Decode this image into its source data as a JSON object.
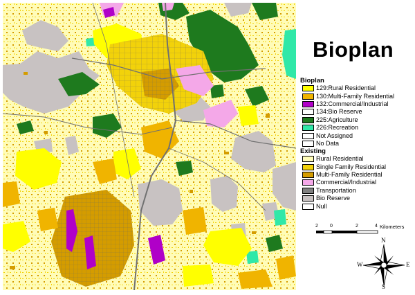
{
  "title": "Bioplan",
  "legend": {
    "bioplan_heading": "Bioplan",
    "bioplan_items": [
      {
        "label": "129:Rural Residential",
        "color": "#ffff00"
      },
      {
        "label": "130:Multi-Family Residential",
        "color": "#f0b400"
      },
      {
        "label": "132:Commercial/Industrial",
        "color": "#b000c8"
      },
      {
        "label": "134:Bio Reserve",
        "color": "#ffffff"
      },
      {
        "label": "225:Agriculture",
        "color": "#1e7a1e"
      },
      {
        "label": "226:Recreation",
        "color": "#30e8a8"
      },
      {
        "label": "Not Assigned",
        "color": "#ffffff"
      },
      {
        "label": "No Data",
        "color": "#ffffff"
      }
    ],
    "existing_heading": "Existing",
    "existing_items": [
      {
        "label": "Rural Residential",
        "color": "#fffcb8"
      },
      {
        "label": "Single Family Residential",
        "color": "#f2d20a"
      },
      {
        "label": "Multi-Family Residential",
        "color": "#d49c00"
      },
      {
        "label": "Commercial/Industrial",
        "color": "#f4a8e8"
      },
      {
        "label": "Transportation",
        "color": "#808080"
      },
      {
        "label": "Bio Reserve",
        "color": "#c8c2c2"
      },
      {
        "label": "Null",
        "color": "#ffffff"
      }
    ]
  },
  "scale": {
    "ticks": [
      "2",
      "0",
      "2",
      "4"
    ],
    "unit": "Kilometers"
  },
  "compass": {
    "n": "N",
    "s": "S",
    "e": "E",
    "w": "W"
  }
}
